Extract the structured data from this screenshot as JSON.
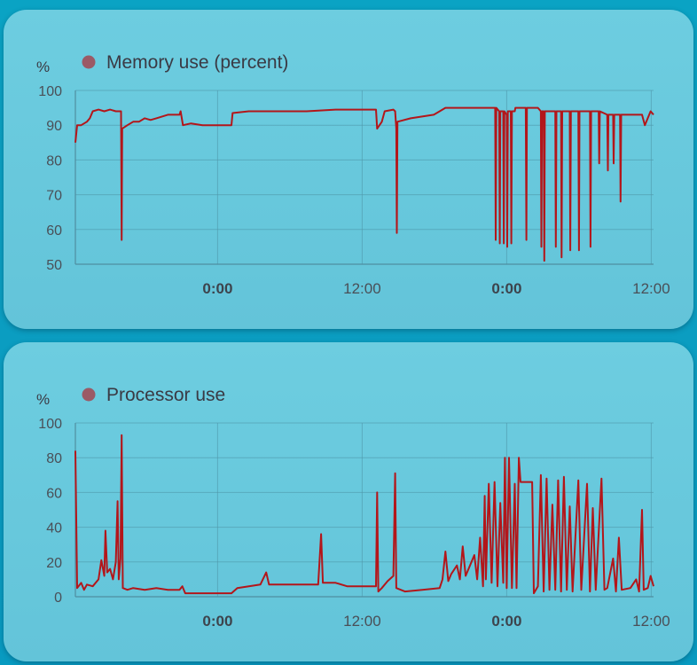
{
  "chart_data": [
    {
      "type": "line",
      "unit": "%",
      "legend": "Memory use (percent)",
      "color": "#b3161a",
      "ylim": [
        50,
        100
      ],
      "yticks": [
        50,
        60,
        70,
        80,
        90,
        100
      ],
      "xlim": [
        0,
        100
      ],
      "xticks": [
        {
          "x": 24.6,
          "label": "0:00",
          "bold": true
        },
        {
          "x": 49.6,
          "label": "12:00",
          "bold": false
        },
        {
          "x": 74.6,
          "label": "0:00",
          "bold": true
        },
        {
          "x": 99.6,
          "label": "12:00",
          "bold": false
        }
      ],
      "grid": true,
      "points": [
        [
          0,
          85
        ],
        [
          0.3,
          90
        ],
        [
          1,
          90
        ],
        [
          2,
          91
        ],
        [
          2.5,
          92
        ],
        [
          3,
          94
        ],
        [
          4,
          94.5
        ],
        [
          5,
          94
        ],
        [
          6,
          94.5
        ],
        [
          7,
          94
        ],
        [
          7.5,
          94
        ],
        [
          7.9,
          94
        ],
        [
          8,
          57
        ],
        [
          8.1,
          89
        ],
        [
          9,
          90
        ],
        [
          10,
          91
        ],
        [
          11,
          91
        ],
        [
          12,
          92
        ],
        [
          13,
          91.5
        ],
        [
          14,
          92
        ],
        [
          15,
          92.5
        ],
        [
          16,
          93
        ],
        [
          18,
          93
        ],
        [
          18.2,
          94
        ],
        [
          18.6,
          90
        ],
        [
          20,
          90.5
        ],
        [
          22,
          90
        ],
        [
          24,
          90
        ],
        [
          25,
          90
        ],
        [
          27,
          90
        ],
        [
          27.2,
          93.5
        ],
        [
          30,
          94
        ],
        [
          35,
          94
        ],
        [
          40,
          94
        ],
        [
          45,
          94.5
        ],
        [
          50,
          94.5
        ],
        [
          52,
          94.5
        ],
        [
          52.2,
          89
        ],
        [
          53,
          91
        ],
        [
          53.5,
          94
        ],
        [
          55,
          94.5
        ],
        [
          55.3,
          94
        ],
        [
          55.5,
          89
        ],
        [
          55.6,
          59
        ],
        [
          55.7,
          91
        ],
        [
          58,
          92
        ],
        [
          62,
          93
        ],
        [
          63,
          94
        ],
        [
          64,
          95
        ],
        [
          67,
          95
        ],
        [
          71,
          95
        ],
        [
          72.6,
          95
        ],
        [
          72.7,
          57
        ],
        [
          72.8,
          95
        ],
        [
          73.3,
          94
        ],
        [
          73.4,
          56
        ],
        [
          73.5,
          94
        ],
        [
          74,
          94
        ],
        [
          74.1,
          56
        ],
        [
          74.2,
          94
        ],
        [
          74.6,
          93
        ],
        [
          74.7,
          55
        ],
        [
          74.8,
          94
        ],
        [
          75.3,
          94
        ],
        [
          75.4,
          56
        ],
        [
          75.5,
          94
        ],
        [
          76,
          94
        ],
        [
          76.1,
          95
        ],
        [
          77.9,
          95
        ],
        [
          78,
          57
        ],
        [
          78.1,
          95
        ],
        [
          80,
          95
        ],
        [
          80.5,
          94
        ],
        [
          80.6,
          55
        ],
        [
          80.7,
          94
        ],
        [
          81,
          94
        ],
        [
          81.1,
          51
        ],
        [
          81.2,
          94
        ],
        [
          83,
          94
        ],
        [
          83.1,
          55
        ],
        [
          83.2,
          94
        ],
        [
          84,
          94
        ],
        [
          84.1,
          52
        ],
        [
          84.2,
          94
        ],
        [
          85.5,
          94
        ],
        [
          85.6,
          54
        ],
        [
          85.7,
          94
        ],
        [
          87,
          94
        ],
        [
          87.1,
          54
        ],
        [
          87.2,
          94
        ],
        [
          89,
          94
        ],
        [
          89.1,
          55
        ],
        [
          89.2,
          94
        ],
        [
          90.5,
          94
        ],
        [
          90.6,
          79
        ],
        [
          90.7,
          94
        ],
        [
          92,
          93
        ],
        [
          92.1,
          77
        ],
        [
          92.2,
          93
        ],
        [
          93,
          93
        ],
        [
          93.1,
          79
        ],
        [
          93.2,
          93
        ],
        [
          94.2,
          93
        ],
        [
          94.3,
          68
        ],
        [
          94.4,
          93
        ],
        [
          96,
          93
        ],
        [
          97,
          93
        ],
        [
          98,
          93
        ],
        [
          98.5,
          90
        ],
        [
          99.5,
          94
        ],
        [
          100,
          93
        ]
      ]
    },
    {
      "type": "line",
      "unit": "%",
      "legend": "Processor use",
      "color": "#b3161a",
      "ylim": [
        0,
        100
      ],
      "yticks": [
        0,
        20,
        40,
        60,
        80,
        100
      ],
      "xlim": [
        0,
        100
      ],
      "xticks": [
        {
          "x": 24.6,
          "label": "0:00",
          "bold": true
        },
        {
          "x": 49.6,
          "label": "12:00",
          "bold": false
        },
        {
          "x": 74.6,
          "label": "0:00",
          "bold": true
        },
        {
          "x": 99.6,
          "label": "12:00",
          "bold": false
        }
      ],
      "grid": true,
      "points": [
        [
          0,
          84
        ],
        [
          0.3,
          5
        ],
        [
          1,
          8
        ],
        [
          1.5,
          4
        ],
        [
          2,
          7
        ],
        [
          3,
          6
        ],
        [
          4,
          10
        ],
        [
          4.5,
          21
        ],
        [
          5,
          12
        ],
        [
          5.2,
          38
        ],
        [
          5.5,
          14
        ],
        [
          6,
          16
        ],
        [
          6.5,
          10
        ],
        [
          7,
          20
        ],
        [
          7.3,
          55
        ],
        [
          7.5,
          10
        ],
        [
          7.8,
          22
        ],
        [
          8,
          93
        ],
        [
          8.2,
          5
        ],
        [
          9,
          4
        ],
        [
          10,
          5
        ],
        [
          12,
          4
        ],
        [
          14,
          5
        ],
        [
          16,
          4
        ],
        [
          18,
          4
        ],
        [
          18.5,
          6
        ],
        [
          19,
          2
        ],
        [
          22,
          2
        ],
        [
          25,
          2
        ],
        [
          27,
          2
        ],
        [
          28,
          5
        ],
        [
          30,
          6
        ],
        [
          32,
          7
        ],
        [
          33,
          14
        ],
        [
          33.5,
          7
        ],
        [
          36,
          7
        ],
        [
          40,
          7
        ],
        [
          42,
          7
        ],
        [
          42.5,
          36
        ],
        [
          42.8,
          8
        ],
        [
          45,
          8
        ],
        [
          47,
          6
        ],
        [
          50,
          6
        ],
        [
          52,
          6
        ],
        [
          52.2,
          60
        ],
        [
          52.4,
          3
        ],
        [
          53,
          5
        ],
        [
          54,
          9
        ],
        [
          55,
          12
        ],
        [
          55.3,
          71
        ],
        [
          55.5,
          5
        ],
        [
          57,
          3
        ],
        [
          60,
          4
        ],
        [
          63,
          5
        ],
        [
          63.5,
          10
        ],
        [
          64,
          26
        ],
        [
          64.5,
          9
        ],
        [
          65,
          13
        ],
        [
          66,
          18
        ],
        [
          66.5,
          10
        ],
        [
          67,
          29
        ],
        [
          67.5,
          12
        ],
        [
          68,
          16
        ],
        [
          69,
          24
        ],
        [
          69.5,
          10
        ],
        [
          70,
          34
        ],
        [
          70.5,
          6
        ],
        [
          70.8,
          58
        ],
        [
          71,
          10
        ],
        [
          71.5,
          65
        ],
        [
          72,
          8
        ],
        [
          72.5,
          66
        ],
        [
          73,
          6
        ],
        [
          73.5,
          54
        ],
        [
          74,
          8
        ],
        [
          74.3,
          80
        ],
        [
          74.6,
          5
        ],
        [
          75,
          80
        ],
        [
          75.5,
          5
        ],
        [
          76,
          65
        ],
        [
          76.3,
          5
        ],
        [
          76.7,
          80
        ],
        [
          77,
          66
        ],
        [
          78,
          66
        ],
        [
          79,
          66
        ],
        [
          79.3,
          2
        ],
        [
          80,
          6
        ],
        [
          80.5,
          70
        ],
        [
          81,
          3
        ],
        [
          81.5,
          68
        ],
        [
          82,
          4
        ],
        [
          82.5,
          53
        ],
        [
          83,
          4
        ],
        [
          83.5,
          67
        ],
        [
          84,
          3
        ],
        [
          84.5,
          69
        ],
        [
          85,
          4
        ],
        [
          85.5,
          52
        ],
        [
          86,
          3
        ],
        [
          87,
          67
        ],
        [
          87.5,
          4
        ],
        [
          88.5,
          65
        ],
        [
          89,
          3
        ],
        [
          89.5,
          51
        ],
        [
          90,
          4
        ],
        [
          91,
          68
        ],
        [
          91.5,
          4
        ],
        [
          92,
          5
        ],
        [
          93,
          22
        ],
        [
          93.5,
          3
        ],
        [
          94,
          34
        ],
        [
          94.5,
          4
        ],
        [
          96,
          5
        ],
        [
          97,
          10
        ],
        [
          97.5,
          3
        ],
        [
          98,
          50
        ],
        [
          98.3,
          4
        ],
        [
          99,
          5
        ],
        [
          99.5,
          12
        ],
        [
          100,
          6
        ]
      ]
    }
  ]
}
